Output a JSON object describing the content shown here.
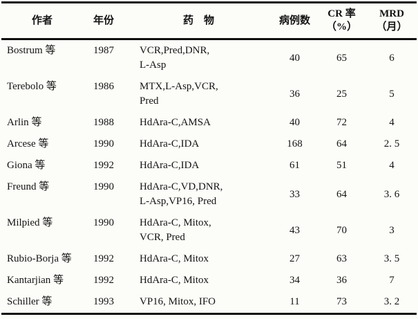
{
  "table": {
    "headers": {
      "author": "作者",
      "year": "年份",
      "drugs": "药　物",
      "cases": "病例数",
      "cr_line1": "CR 率",
      "cr_line2": "（%）",
      "mrd_line1": "MRD",
      "mrd_line2": "（月）"
    },
    "rows": [
      {
        "author": "Bostrum 等",
        "year": "1987",
        "drugs": [
          "VCR,Pred,DNR,",
          "L-Asp"
        ],
        "cases": "40",
        "cr": "65",
        "mrd": "6"
      },
      {
        "author": "Terebolo 等",
        "year": "1986",
        "drugs": [
          "MTX,L-Asp,VCR,",
          "Pred"
        ],
        "cases": "36",
        "cr": "25",
        "mrd": "5"
      },
      {
        "author": "Arlin 等",
        "year": "1988",
        "drugs": [
          "HdAra-C,AMSA"
        ],
        "cases": "40",
        "cr": "72",
        "mrd": "4"
      },
      {
        "author": "Arcese 等",
        "year": "1990",
        "drugs": [
          "HdAra-C,IDA"
        ],
        "cases": "168",
        "cr": "64",
        "mrd": "2. 5"
      },
      {
        "author": "Giona 等",
        "year": "1992",
        "drugs": [
          "HdAra-C,IDA"
        ],
        "cases": "61",
        "cr": "51",
        "mrd": "4"
      },
      {
        "author": "Freund 等",
        "year": "1990",
        "drugs": [
          "HdAra-C,VD,DNR,",
          "L-Asp,VP16, Pred"
        ],
        "cases": "33",
        "cr": "64",
        "mrd": "3. 6"
      },
      {
        "author": "Milpied 等",
        "year": "1990",
        "drugs": [
          "HdAra-C, Mitox,",
          "VCR, Pred"
        ],
        "cases": "43",
        "cr": "70",
        "mrd": "3"
      },
      {
        "author": "Rubio-Borja 等",
        "year": "1992",
        "drugs": [
          "HdAra-C, Mitox"
        ],
        "cases": "27",
        "cr": "63",
        "mrd": "3. 5"
      },
      {
        "author": "Kantarjian 等",
        "year": "1992",
        "drugs": [
          "HdAra-C, Mitox"
        ],
        "cases": "34",
        "cr": "36",
        "mrd": "7"
      },
      {
        "author": "Schiller 等",
        "year": "1993",
        "drugs": [
          "VP16, Mitox, IFO"
        ],
        "cases": "11",
        "cr": "73",
        "mrd": "3. 2"
      }
    ]
  },
  "colors": {
    "background": "#fcfcf8",
    "text": "#141414",
    "rule": "#0e0e0e"
  }
}
